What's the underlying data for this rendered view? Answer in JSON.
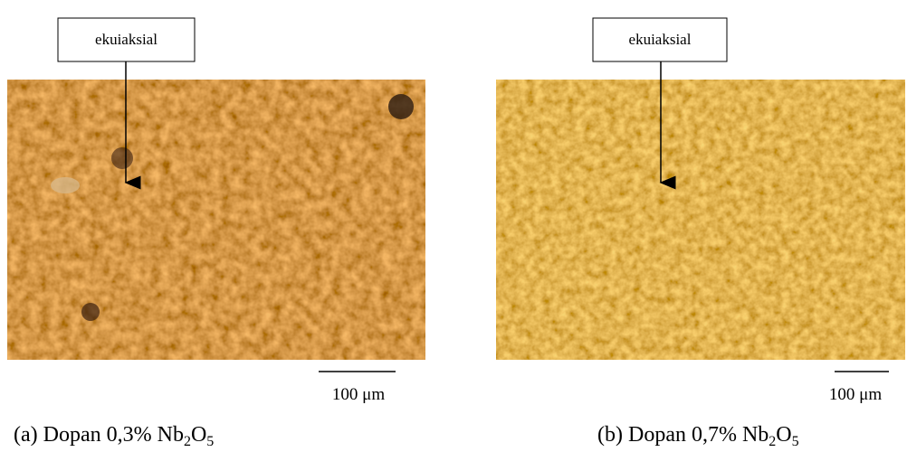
{
  "panels": [
    {
      "label": "ekuiaksial",
      "scale": "100 μm",
      "caption": [
        "(a)  Dopan 0,3% Nb",
        "2",
        "O",
        "5"
      ]
    },
    {
      "label": "ekuiaksial",
      "scale": "100 μm",
      "caption": [
        "(b)  Dopan 0,7% Nb",
        "2",
        "O",
        "5"
      ]
    }
  ]
}
